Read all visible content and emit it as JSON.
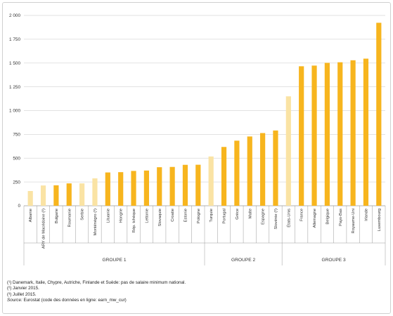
{
  "chart_data": {
    "type": "bar",
    "categories": [
      "Albanie",
      "ARY de Macédoine (²)",
      "Bulgarie",
      "Roumanie",
      "Serbie",
      "Monténégro (³)",
      "Lituanie",
      "Hongrie",
      "Rép. tchèque",
      "Lettonie",
      "Slovaquie",
      "Croatie",
      "Estonie",
      "Pologne",
      "Turquie",
      "Portugal",
      "Grèce",
      "Malte",
      "Espagne",
      "Slovénie (²)",
      "États-Unis",
      "France",
      "Allemagne",
      "Belgique",
      "Pays-Bas",
      "Royaume-Uni",
      "Irlande",
      "Luxembourg"
    ],
    "values": [
      155,
      213,
      215,
      235,
      235,
      288,
      350,
      353,
      366,
      370,
      405,
      408,
      430,
      431,
      518,
      618,
      684,
      728,
      764,
      791,
      1150,
      1466,
      1473,
      1502,
      1508,
      1529,
      1546,
      1923
    ],
    "highlight": [
      true,
      true,
      false,
      false,
      true,
      true,
      false,
      false,
      false,
      false,
      false,
      false,
      false,
      false,
      true,
      false,
      false,
      false,
      false,
      false,
      true,
      false,
      false,
      false,
      false,
      false,
      false,
      false
    ],
    "colors": {
      "main": "#f7b51e",
      "light": "#fae3a4",
      "grid": "#d9d9d9",
      "axis": "#9a9a9a",
      "text": "#333333"
    },
    "yticks": [
      "0",
      "250",
      "500",
      "750",
      "1 000",
      "1 250",
      "1 500",
      "1 750",
      "2 000"
    ],
    "ylim": [
      0,
      2000
    ],
    "title": "",
    "xlabel": "",
    "ylabel": "",
    "groups": [
      {
        "label": "GROUPE 1",
        "start": 0,
        "end": 14
      },
      {
        "label": "GROUPE 2",
        "start": 14,
        "end": 20
      },
      {
        "label": "GROUPE 3",
        "start": 20,
        "end": 28
      }
    ],
    "grid": true,
    "legend": "none"
  },
  "notes": {
    "note1": "(¹) Danemark, Italie, Chypre, Autriche, Finlande et Suède: pas de salaire minimum national.",
    "note2": "(²) Janvier 2015.",
    "note3": "(³) Juillet 2015.",
    "source_label": "Source:",
    "source_text": " Eurostat (code des données en ligne: earn_mw_cur)"
  }
}
